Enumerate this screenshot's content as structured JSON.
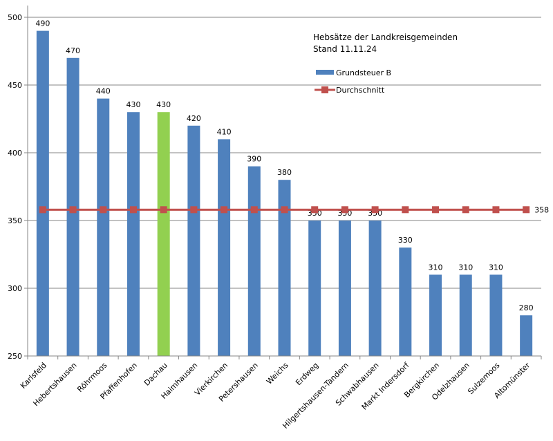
{
  "chart_data": {
    "type": "bar",
    "title": "Hebsätze der Landkreisgemeinden",
    "subtitle": "Stand 11.11.24",
    "categories": [
      "Karlsfeld",
      "Hebertshausen",
      "Röhrmoos",
      "Pfaffenhofen",
      "Dachau",
      "Haimhausen",
      "Vierkirchen",
      "Petershausen",
      "Weichs",
      "Erdweg",
      "Hilgertshausen-Tandern",
      "Schwabhausen",
      "Markt Indersdorf",
      "Bergkirchen",
      "Odelzhausen",
      "Sulzemoos",
      "Altomünster"
    ],
    "series": [
      {
        "name": "Grundsteuer B",
        "type": "bar",
        "color": "#4f81bd",
        "highlight_color": "#92d050",
        "highlight_category": "Dachau",
        "values": [
          490,
          470,
          440,
          430,
          430,
          420,
          410,
          390,
          380,
          350,
          350,
          350,
          330,
          310,
          310,
          310,
          280
        ],
        "data_labels": [
          "490",
          "470",
          "440",
          "430",
          "430",
          "420",
          "410",
          "390",
          "380",
          "350",
          "350",
          "350",
          "330",
          "310",
          "310",
          "310",
          "280"
        ]
      },
      {
        "name": "Durchschnitt",
        "type": "line",
        "color": "#c0504d",
        "values": [
          358,
          358,
          358,
          358,
          358,
          358,
          358,
          358,
          358,
          358,
          358,
          358,
          358,
          358,
          358,
          358,
          358
        ],
        "end_label": "358"
      }
    ],
    "yticks": [
      "250",
      "300",
      "350",
      "400",
      "450",
      "500"
    ],
    "ylim": [
      250,
      500
    ],
    "xlabel": "",
    "ylabel": "",
    "grid": true,
    "legend": "top-right"
  }
}
